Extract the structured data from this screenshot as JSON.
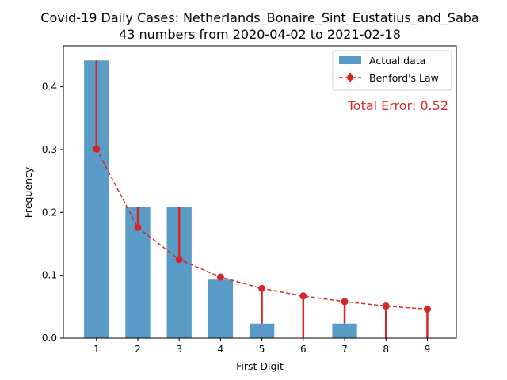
{
  "chart_data": {
    "type": "bar",
    "title": "Covid-19 Daily Cases: Netherlands_Bonaire_Sint_Eustatius_and_Saba",
    "subtitle": "43 numbers from 2020-04-02 to 2021-02-18",
    "xlabel": "First Digit",
    "ylabel": "Frequency",
    "categories": [
      "1",
      "2",
      "3",
      "4",
      "5",
      "6",
      "7",
      "8",
      "9"
    ],
    "x_ticks": [
      "1",
      "2",
      "3",
      "4",
      "5",
      "6",
      "7",
      "8",
      "9"
    ],
    "y_ticks": [
      "0.0",
      "0.1",
      "0.2",
      "0.3",
      "0.4"
    ],
    "ylim": [
      0,
      0.465
    ],
    "xlim": [
      0.2,
      9.7
    ],
    "grid": false,
    "legend_position": "top-right",
    "series": [
      {
        "name": "Actual data",
        "type": "bar",
        "color": "#5b9bc8",
        "values": [
          0.442,
          0.209,
          0.209,
          0.093,
          0.023,
          0.0,
          0.023,
          0.0,
          0.0
        ]
      },
      {
        "name": "Benford's Law",
        "type": "line",
        "color": "#d62728",
        "values": [
          0.301,
          0.176,
          0.125,
          0.097,
          0.079,
          0.067,
          0.058,
          0.051,
          0.046
        ]
      }
    ],
    "annotation": {
      "text": "Total Error: 0.52",
      "color": "#d62728"
    }
  }
}
